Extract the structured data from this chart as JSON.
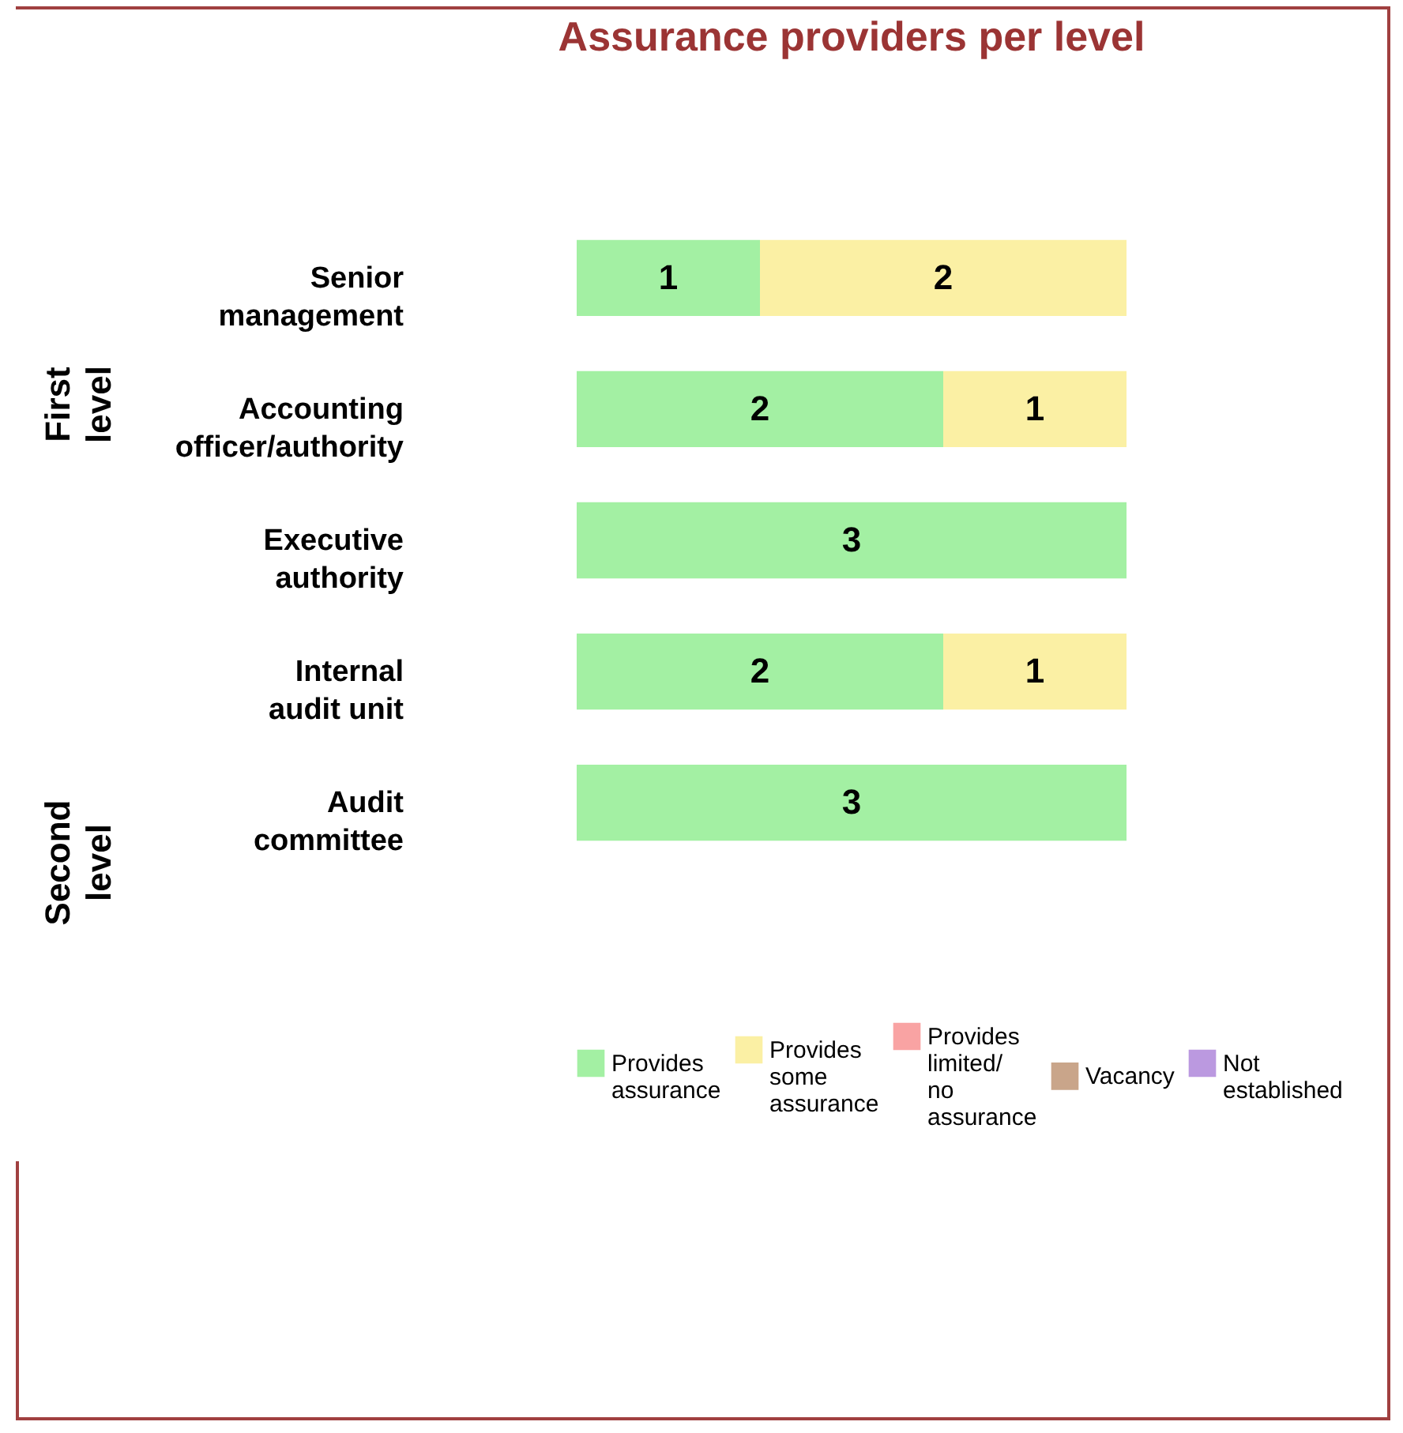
{
  "chart_data": {
    "type": "bar",
    "orientation": "horizontal",
    "stacked": true,
    "title": "Assurance providers per level",
    "categories": [
      "Senior management",
      "Accounting officer/authority",
      "Executive authority",
      "Internal audit unit",
      "Audit committee"
    ],
    "series": [
      {
        "name": "Provides assurance",
        "color": "#a3f0a3",
        "values": [
          1,
          2,
          3,
          2,
          3
        ]
      },
      {
        "name": "Provides some assurance",
        "color": "#fbf0a4",
        "values": [
          2,
          1,
          null,
          1,
          null
        ]
      },
      {
        "name": "Provides limited/ no assurance",
        "color": "#f9a3a3",
        "values": [
          null,
          null,
          null,
          null,
          null
        ]
      },
      {
        "name": "Vacancy",
        "color": "#c9a58a",
        "values": [
          null,
          null,
          null,
          null,
          null
        ]
      },
      {
        "name": "Not established",
        "color": "#bb99e0",
        "values": [
          null,
          null,
          null,
          null,
          null
        ]
      }
    ],
    "annotations": [
      "First level",
      "Second level"
    ],
    "data_labels": true,
    "legend": "bottom",
    "grid": false,
    "tick_labels": "y"
  }
}
